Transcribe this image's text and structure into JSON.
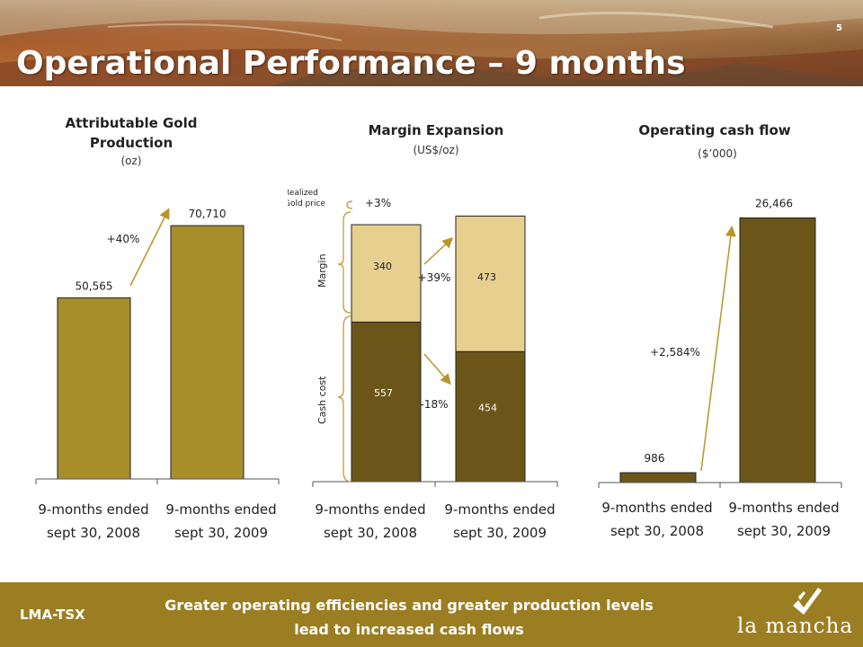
{
  "header": {
    "title": "Operational Performance – 9 months",
    "page_number": "5"
  },
  "colors": {
    "bar_gold": "#a88d2b",
    "bar_dark": "#6b5519",
    "bar_light": "#e7cf90",
    "footer_bg": "#9c7e22",
    "text_white": "#ffffff"
  },
  "chart_data": [
    {
      "type": "bar",
      "title": "Attributable Gold Production",
      "subtitle": "(oz)",
      "categories": [
        "9-months ended sept 30, 2008",
        "9-months ended sept 30, 2009"
      ],
      "values": [
        50565,
        70710
      ],
      "value_labels": [
        "50,565",
        "70,710"
      ],
      "annotations": [
        "+40%"
      ],
      "ylim": [
        0,
        76000
      ]
    },
    {
      "type": "bar",
      "stacked": true,
      "title": "Margin Expansion",
      "subtitle": "(US$/oz)",
      "categories": [
        "9-months ended sept 30, 2008",
        "9-months ended sept 30, 2009"
      ],
      "series": [
        {
          "name": "Cash cost",
          "values": [
            557,
            454
          ]
        },
        {
          "name": "Margin",
          "values": [
            340,
            473
          ]
        }
      ],
      "annotations": [
        "Realized Gold price",
        "+3%",
        "+39%",
        "-18%"
      ],
      "ylim": [
        0,
        1010
      ]
    },
    {
      "type": "bar",
      "title": "Operating cash flow",
      "subtitle": "($’000)",
      "categories": [
        "9-months ended sept 30, 2008",
        "9-months ended sept 30, 2009"
      ],
      "values": [
        986,
        26466
      ],
      "value_labels": [
        "986",
        "26,466"
      ],
      "annotations": [
        "+2,584%"
      ],
      "ylim": [
        0,
        28400
      ]
    }
  ],
  "footer": {
    "ticker": "LMA-TSX",
    "message_line1": "Greater operating efficiencies and greater production levels",
    "message_line2": "lead to increased cash flows",
    "logo_text": "la mancha"
  }
}
